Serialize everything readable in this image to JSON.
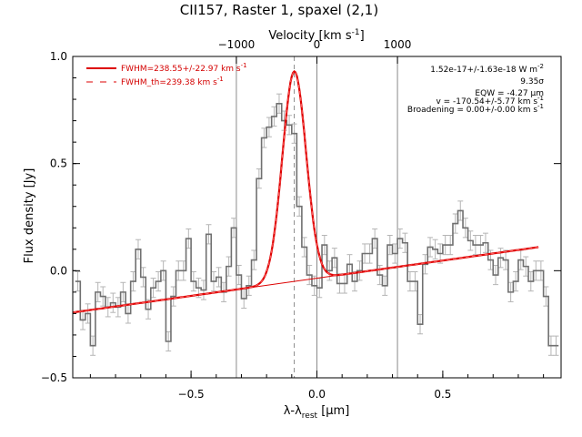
{
  "chart_data": {
    "type": "line",
    "title": "CII157, Raster 1, spaxel (2,1)",
    "xlabel": "λ-λ",
    "xlabel_sub": "rest",
    "xlabel_unit": " [μm]",
    "ylabel": "Flux density [Jy]",
    "top_axis": {
      "label": "Velocity [km s",
      "label_sup": "-1",
      "label_close": "]",
      "ticks": [
        -1000,
        0,
        1000
      ],
      "tick_labels": [
        "−1000",
        "0",
        "1000"
      ]
    },
    "xlim": [
      -0.97,
      0.97
    ],
    "ylim": [
      -0.5,
      1.0
    ],
    "x_ticks": [
      -0.5,
      0.0,
      0.5
    ],
    "x_tick_labels": [
      "−0.5",
      "0.0",
      "0.5"
    ],
    "y_ticks": [
      -0.5,
      0.0,
      0.5,
      1.0
    ],
    "y_tick_labels": [
      "−0.5",
      "0.0",
      "0.5",
      "1.0"
    ],
    "vlines_solid": [
      -0.32,
      0.0,
      0.32
    ],
    "vline_dashed": -0.09,
    "legend": [
      {
        "label": "FWHM=238.55+/-22.97 km s",
        "sup": "-1",
        "style": "solid",
        "color": "#dd0000"
      },
      {
        "label": "FWHM_th=239.38 km s",
        "sup": "-1",
        "style": "dashed",
        "color": "#dd0000"
      }
    ],
    "annotations": [
      {
        "text": "1.52e-17+/-1.63e-18 W m",
        "sup": "-2"
      },
      {
        "text": "9.35σ",
        "sup": ""
      },
      {
        "text": "EQW = -4.27 μm",
        "sup": ""
      },
      {
        "text": "v = -170.54+/-5.77 km s",
        "sup": "-1"
      },
      {
        "text": "Broadening = 0.00+/-0.00 km s",
        "sup": "-1"
      }
    ],
    "series": [
      {
        "label": "spectrum",
        "style": "step",
        "color": "#707070",
        "x": [
          -0.95,
          -0.93,
          -0.91,
          -0.89,
          -0.87,
          -0.85,
          -0.83,
          -0.81,
          -0.79,
          -0.77,
          -0.75,
          -0.73,
          -0.71,
          -0.69,
          -0.67,
          -0.65,
          -0.63,
          -0.61,
          -0.59,
          -0.57,
          -0.55,
          -0.53,
          -0.51,
          -0.49,
          -0.47,
          -0.45,
          -0.43,
          -0.41,
          -0.39,
          -0.37,
          -0.35,
          -0.33,
          -0.31,
          -0.29,
          -0.27,
          -0.25,
          -0.23,
          -0.21,
          -0.19,
          -0.17,
          -0.15,
          -0.13,
          -0.11,
          -0.09,
          -0.07,
          -0.05,
          -0.03,
          -0.01,
          0.01,
          0.03,
          0.05,
          0.07,
          0.09,
          0.11,
          0.13,
          0.15,
          0.17,
          0.19,
          0.21,
          0.23,
          0.25,
          0.27,
          0.29,
          0.31,
          0.33,
          0.35,
          0.37,
          0.39,
          0.41,
          0.43,
          0.45,
          0.47,
          0.49,
          0.51,
          0.53,
          0.55,
          0.57,
          0.59,
          0.61,
          0.63,
          0.65,
          0.67,
          0.69,
          0.71,
          0.73,
          0.75,
          0.77,
          0.79,
          0.81,
          0.83,
          0.85,
          0.87,
          0.89,
          0.91,
          0.93,
          0.95
        ],
        "y": [
          -0.05,
          -0.23,
          -0.2,
          -0.35,
          -0.1,
          -0.12,
          -0.17,
          -0.15,
          -0.17,
          -0.1,
          -0.2,
          -0.05,
          0.1,
          -0.03,
          -0.18,
          -0.08,
          -0.05,
          0.0,
          -0.33,
          -0.12,
          0.0,
          0.0,
          0.15,
          -0.05,
          -0.08,
          -0.09,
          0.17,
          -0.05,
          -0.03,
          -0.1,
          0.02,
          0.2,
          -0.02,
          -0.13,
          -0.07,
          0.05,
          0.43,
          0.62,
          0.67,
          0.72,
          0.78,
          0.7,
          0.68,
          0.64,
          0.3,
          0.11,
          -0.02,
          -0.07,
          -0.08,
          0.12,
          0.0,
          0.06,
          -0.06,
          -0.06,
          0.03,
          -0.05,
          0.0,
          0.08,
          0.08,
          0.15,
          -0.02,
          -0.07,
          0.12,
          0.08,
          0.15,
          0.13,
          -0.05,
          -0.05,
          -0.25,
          0.03,
          0.11,
          0.1,
          0.08,
          0.12,
          0.12,
          0.22,
          0.28,
          0.2,
          0.14,
          0.12,
          0.12,
          0.13,
          0.05,
          -0.02,
          0.06,
          0.05,
          -0.1,
          -0.05,
          0.05,
          0.02,
          -0.05,
          0.0,
          0.0,
          -0.12,
          -0.35,
          -0.35
        ],
        "err": 0.045
      },
      {
        "label": "continuum",
        "style": "thin",
        "color": "#dd0000",
        "x": [
          -0.97,
          0.88
        ],
        "y": [
          -0.195,
          0.11
        ]
      },
      {
        "label": "gaussian fit",
        "style": "thick",
        "color": "#dd0000",
        "line_center": -0.09,
        "peak": 0.93,
        "sigma": 0.047
      }
    ]
  }
}
